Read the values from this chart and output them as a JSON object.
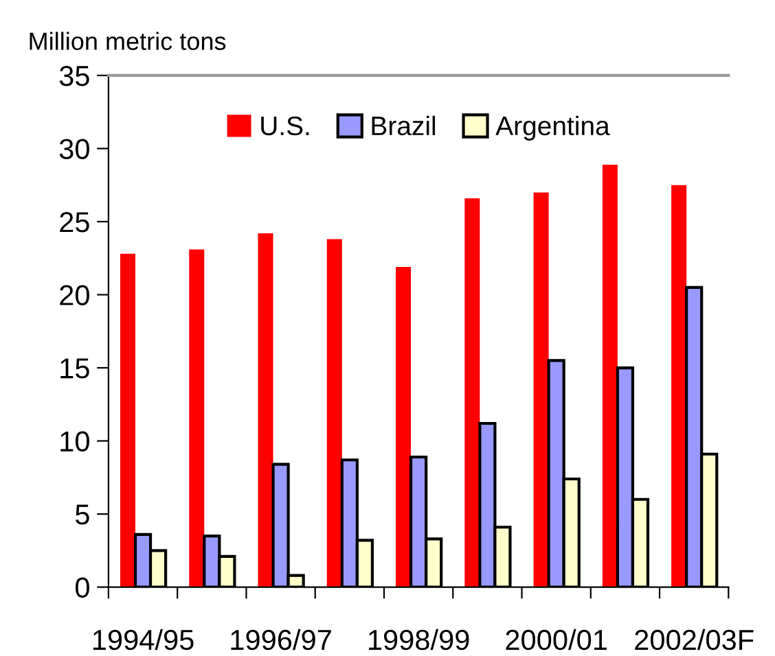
{
  "chart_data": {
    "type": "bar",
    "ylabel": "Million metric tons",
    "categories": [
      "1994/95",
      null,
      "1996/97",
      null,
      "1998/99",
      null,
      "2000/01",
      null,
      "2002/03F"
    ],
    "series": [
      {
        "name": "U.S.",
        "color": "#ff0000",
        "values": [
          22.8,
          23.1,
          24.2,
          23.8,
          21.9,
          26.6,
          27.0,
          28.9,
          27.5
        ]
      },
      {
        "name": "Brazil",
        "color": "#9999ff",
        "values": [
          3.6,
          3.5,
          8.4,
          8.7,
          8.9,
          11.2,
          15.5,
          15.0,
          20.5
        ]
      },
      {
        "name": "Argentina",
        "color": "#ffffcc",
        "values": [
          2.5,
          2.1,
          0.8,
          3.2,
          3.3,
          4.1,
          7.4,
          6.0,
          9.1
        ]
      }
    ],
    "ylim": [
      0,
      35
    ],
    "yticks": [
      0,
      5,
      10,
      15,
      20,
      25,
      30,
      35
    ],
    "grid": false,
    "legend": "top"
  }
}
